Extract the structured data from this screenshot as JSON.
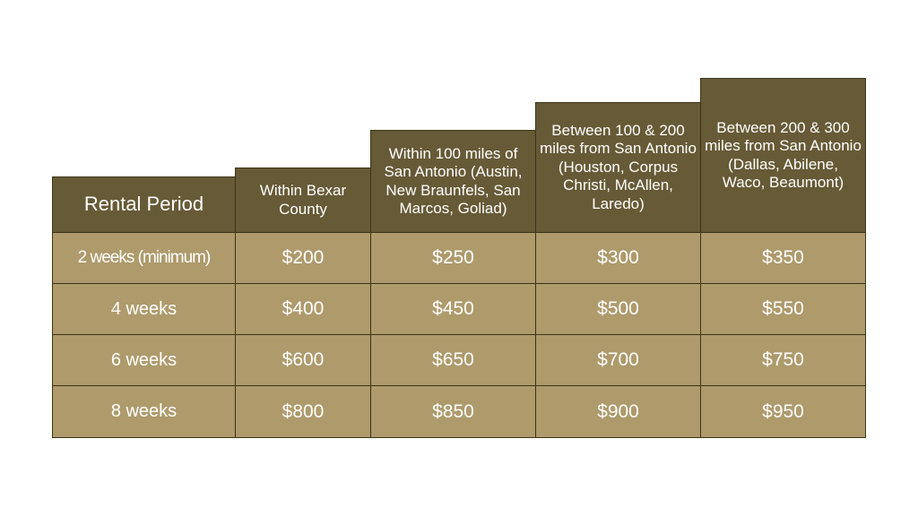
{
  "table": {
    "headers": [
      "Rental Period",
      "Within Bexar County",
      "Within 100 miles of San Antonio (Austin, New Braunfels, San Marcos, Goliad)",
      "Between 100 & 200 miles from San Antonio (Houston, Corpus Christi, McAllen, Laredo)",
      "Between 200 & 300 miles from San Antonio (Dallas, Abilene, Waco, Beaumont)"
    ],
    "rows": [
      [
        "2 weeks (minimum)",
        "$200",
        "$250",
        "$300",
        "$350"
      ],
      [
        "4 weeks",
        "$400",
        "$450",
        "$500",
        "$550"
      ],
      [
        "6 weeks",
        "$600",
        "$650",
        "$700",
        "$750"
      ],
      [
        "8 weeks",
        "$800",
        "$850",
        "$900",
        "$950"
      ]
    ]
  },
  "colors": {
    "header_bg": "#675a36",
    "cell_bg": "#ae9a6b",
    "border": "#3c3418",
    "text": "#ffffff"
  }
}
